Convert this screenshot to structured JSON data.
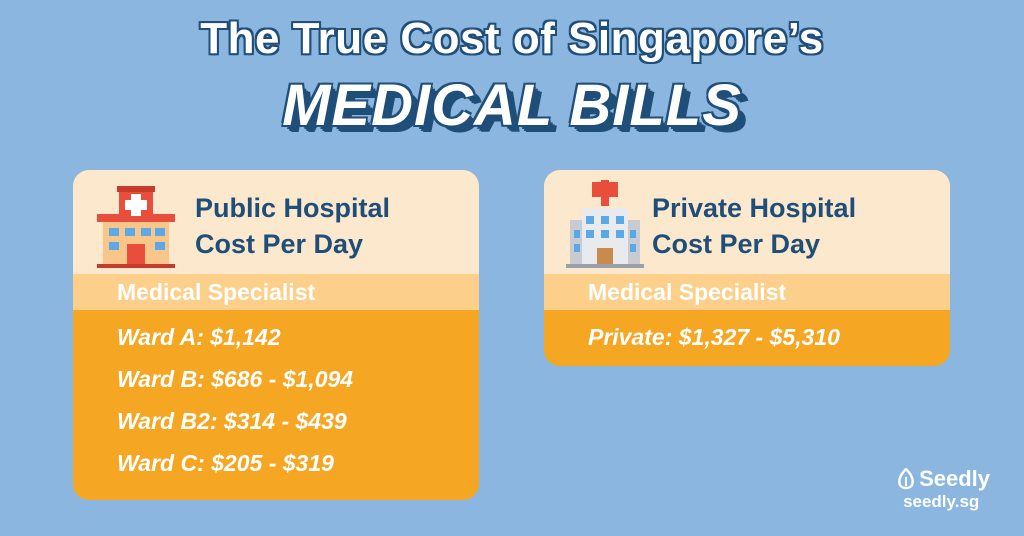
{
  "title": {
    "line1": "The True Cost of Singapore’s",
    "line2": "MEDICAL BILLS"
  },
  "public_card": {
    "heading_line1": "Public Hospital",
    "heading_line2": "Cost Per Day",
    "icon": "public-hospital-icon",
    "subheading": "Medical Specialist",
    "rows": [
      "Ward A: $1,142",
      "Ward B: $686 - $1,094",
      "Ward B2: $314 - $439",
      "Ward C: $205 - $319"
    ]
  },
  "private_card": {
    "heading_line1": "Private Hospital",
    "heading_line2": "Cost Per Day",
    "icon": "private-hospital-icon",
    "subheading": "Medical Specialist",
    "rows": [
      "Private: $1,327 - $5,310"
    ]
  },
  "logo": {
    "brand": "Seedly",
    "url": "seedly.sg",
    "icon": "seed-logo-icon"
  },
  "colors": {
    "background": "#8ab6df",
    "navy": "#1f4e79",
    "card_header": "#fce8cd",
    "card_sub": "#fcd08a",
    "card_body": "#f5a623"
  }
}
